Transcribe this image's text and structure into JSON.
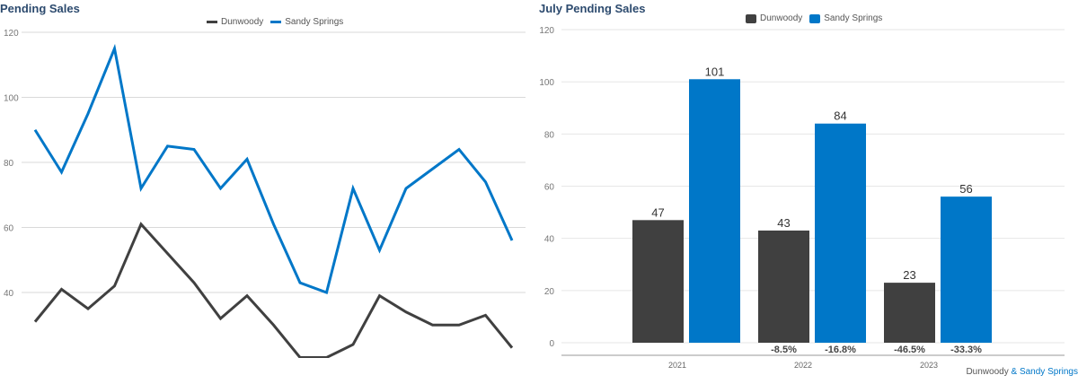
{
  "colors": {
    "dunwoody": "#404040",
    "sandy_springs": "#0077c8",
    "title": "#2c4a6e",
    "grid": "#d9d9d9"
  },
  "left_chart": {
    "title": "Pending Sales",
    "legend": [
      "Dunwoody",
      "Sandy Springs"
    ],
    "y_ticks": [
      "120",
      "100",
      "80",
      "60",
      "40"
    ]
  },
  "right_chart": {
    "title": "July Pending Sales",
    "legend": [
      "Dunwoody",
      "Sandy Springs"
    ],
    "y_ticks": [
      "120",
      "100",
      "80",
      "60",
      "40",
      "20",
      "0"
    ],
    "categories": [
      "2021",
      "2022",
      "2023"
    ],
    "bar_labels": {
      "dunwoody": [
        "47",
        "43",
        "23"
      ],
      "sandy_springs": [
        "101",
        "84",
        "56"
      ]
    },
    "change_labels": {
      "dunwoody": [
        "",
        "-8.5%",
        "-46.5%"
      ],
      "sandy_springs": [
        "",
        "-16.8%",
        "-33.3%"
      ]
    }
  },
  "footer": {
    "part1": "Dunwoody",
    "amp": "&",
    "part2": "Sandy Springs"
  },
  "chart_data": [
    {
      "type": "line",
      "title": "Pending Sales",
      "xlabel": "",
      "ylabel": "",
      "ylim": [
        18,
        120
      ],
      "y_ticks": [
        40,
        60,
        80,
        100,
        120
      ],
      "grid": true,
      "legend_position": "top",
      "x": [
        1,
        2,
        3,
        4,
        5,
        6,
        7,
        8,
        9,
        10,
        11,
        12,
        13,
        14,
        15,
        16,
        17,
        18,
        19
      ],
      "series": [
        {
          "name": "Dunwoody",
          "color": "#404040",
          "values": [
            31,
            41,
            35,
            42,
            61,
            52,
            43,
            32,
            39,
            30,
            20,
            20,
            24,
            39,
            34,
            30,
            30,
            33,
            23
          ]
        },
        {
          "name": "Sandy Springs",
          "color": "#0077c8",
          "values": [
            90,
            77,
            95,
            115,
            72,
            85,
            84,
            72,
            81,
            61,
            43,
            40,
            72,
            53,
            72,
            78,
            84,
            74,
            56
          ]
        }
      ]
    },
    {
      "type": "bar",
      "title": "July Pending Sales",
      "xlabel": "",
      "ylabel": "",
      "ylim": [
        0,
        120
      ],
      "y_ticks": [
        0,
        20,
        40,
        60,
        80,
        100,
        120
      ],
      "grid": true,
      "legend_position": "top",
      "categories": [
        "2021",
        "2022",
        "2023"
      ],
      "series": [
        {
          "name": "Dunwoody",
          "color": "#404040",
          "values": [
            47,
            43,
            23
          ],
          "change": [
            null,
            "-8.5%",
            "-46.5%"
          ]
        },
        {
          "name": "Sandy Springs",
          "color": "#0077c8",
          "values": [
            101,
            84,
            56
          ],
          "change": [
            null,
            "-16.8%",
            "-33.3%"
          ]
        }
      ]
    }
  ]
}
